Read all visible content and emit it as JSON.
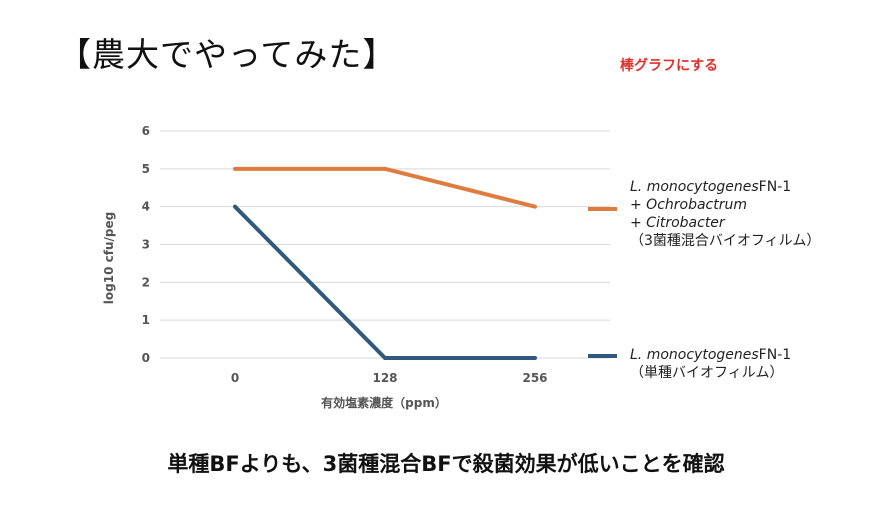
{
  "slide": {
    "title": "【農大でやってみた】",
    "note": "棒グラフにする",
    "conclusion": "単種BFよりも、3菌種混合BFで殺菌効果が低いことを確認"
  },
  "legend": {
    "mixed": {
      "line1_species": "L. monocytogenes",
      "line1_strain": "FN-1",
      "line2": "+ Ochrobactrum",
      "line3": "+ Citrobacter",
      "line4": "（3菌種混合バイオフィルム）"
    },
    "single": {
      "line1_species": "L. monocytogenes",
      "line1_strain": "FN-1",
      "line2": "（単種バイオフィルム）"
    }
  },
  "chart_data": {
    "type": "line",
    "categories": [
      "0",
      "128",
      "256"
    ],
    "xlabel": "有効塩素濃度（ppm）",
    "ylabel": "log10 cfu/peg",
    "ylim": [
      0,
      6
    ],
    "yticks": [
      0,
      1,
      2,
      3,
      4,
      5,
      6
    ],
    "grid": true,
    "legend_position": "right",
    "series": [
      {
        "key": "mixed",
        "values": [
          5,
          5,
          4
        ],
        "color": "#e07b3f"
      },
      {
        "key": "single",
        "values": [
          4,
          0,
          0
        ],
        "color": "#2f5a7e"
      }
    ]
  }
}
